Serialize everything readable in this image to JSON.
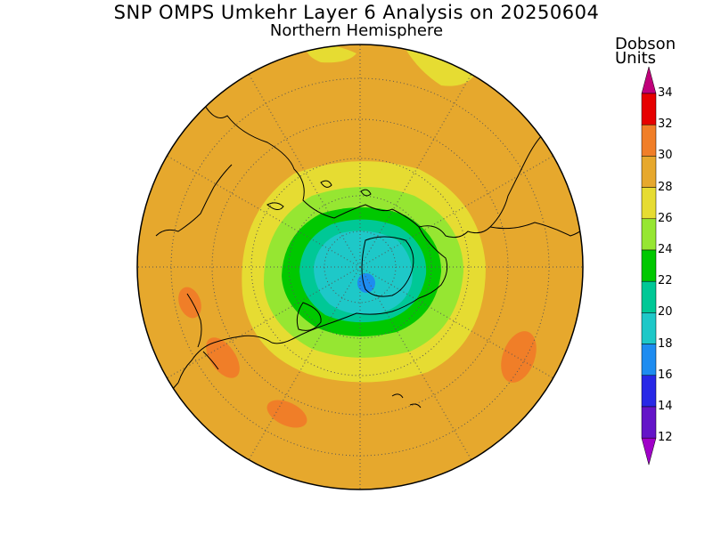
{
  "title": "SNP OMPS Umkehr Layer 6 Analysis on 20250604",
  "subtitle": "Northern Hemisphere",
  "legend": {
    "title_line1": "Dobson",
    "title_line2": "Units",
    "ticks": [
      "34",
      "32",
      "30",
      "28",
      "26",
      "24",
      "22",
      "20",
      "18",
      "16",
      "14",
      "12"
    ],
    "colors": {
      "34": "#c0007a",
      "32": "#e60000",
      "30": "#f07e28",
      "28": "#e6a82d",
      "26": "#e6dc32",
      "24": "#96e632",
      "22": "#00c800",
      "20": "#00c896",
      "18": "#1ec8c8",
      "16": "#1e8cf0",
      "14": "#2828e6",
      "12": "#6414c8",
      "below": "#a000c8"
    }
  },
  "map": {
    "projection": "north polar stereographic",
    "background_band": "28-30",
    "pole_min_band": "16-18",
    "max_band": "30-32",
    "hemisphere": "Northern"
  }
}
